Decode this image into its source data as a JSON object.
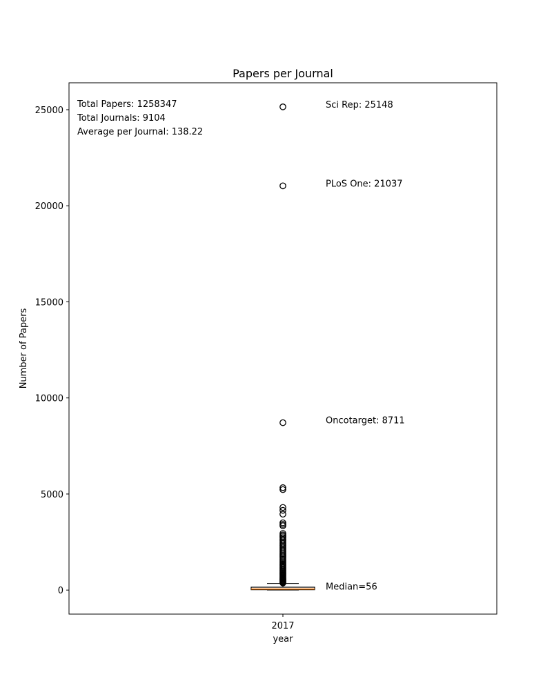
{
  "chart_data": {
    "type": "box",
    "title": "Papers per Journal",
    "xlabel": "year",
    "ylabel": "Number of Papers",
    "categories": [
      "2017"
    ],
    "ylim": [
      -1250,
      26400
    ],
    "yticks": [
      0,
      5000,
      10000,
      15000,
      20000,
      25000
    ],
    "grid": false,
    "box": {
      "category": "2017",
      "min": 1,
      "q1": 20,
      "median": 56,
      "q3": 150,
      "whisker_high": 345,
      "outliers": [
        25148,
        21037,
        8711,
        5330,
        5230,
        4300,
        4150,
        3950,
        3500,
        3420,
        3350,
        2950,
        2870,
        2800,
        2730,
        2650,
        2580,
        2500,
        2430,
        2350,
        2280,
        2200,
        2120,
        2050,
        1980,
        1900,
        1830,
        1760,
        1690,
        1620,
        1550,
        1480,
        1410,
        1350,
        1290,
        1230,
        1170,
        1110,
        1050,
        990,
        940,
        890,
        840,
        790,
        740,
        690,
        640,
        600,
        560,
        520,
        480,
        440,
        400,
        370
      ]
    },
    "stats": {
      "total_papers": "Total Papers: 1258347",
      "total_journals": "Total Journals: 9104",
      "average": "Average per Journal: 138.22"
    },
    "annotations": [
      {
        "text": "Sci Rep: 25148",
        "y": 25148
      },
      {
        "text": "PLoS One: 21037",
        "y": 21037
      },
      {
        "text": "Oncotarget: 8711",
        "y": 8711
      },
      {
        "text": "Median=56",
        "y": 56
      }
    ],
    "colors": {
      "median": "#ff7f0e",
      "box": "#000000",
      "axes": "#000000"
    }
  }
}
